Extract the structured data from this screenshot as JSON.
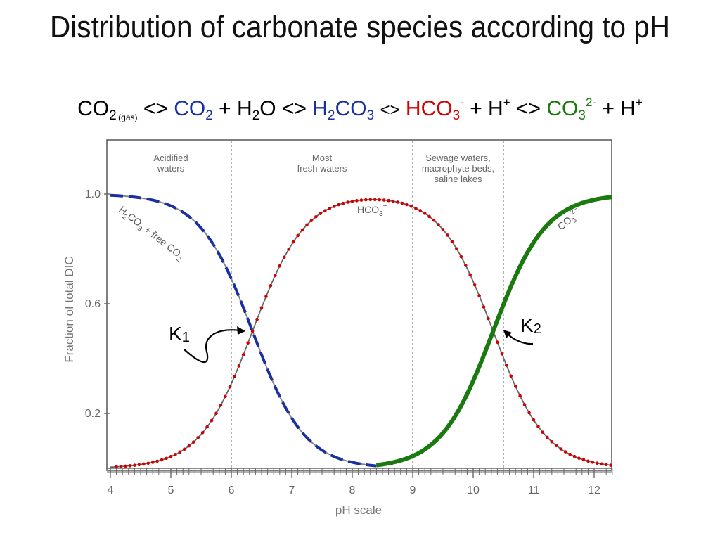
{
  "slide": {
    "title": "Distribution of carbonate species according to pH"
  },
  "equation": {
    "co2_gas": "CO",
    "co2_gas_sub": "2",
    "gas_label": "(gas)",
    "arrow1": "<>",
    "co2_aq": "CO",
    "co2_aq_sub": "2",
    "plus1": "+",
    "h2o_h": "H",
    "h2o_sub": "2",
    "h2o_o": "O",
    "arrow2": "<>",
    "h2co3_h": "H",
    "h2co3_sub1": "2",
    "h2co3_co": "CO",
    "h2co3_sub2": "3",
    "arrow3": "<>",
    "hco3": "HCO",
    "hco3_sub": "3",
    "hco3_sup": "-",
    "plus2": "+ H",
    "hplus_sup1": "+",
    "arrow4": "<>",
    "co3": "CO",
    "co3_sub": "3",
    "co3_sup": "2-",
    "plus3": "+ H",
    "hplus_sup2": "+"
  },
  "colors": {
    "h2co3_curve": "#1a2fa0",
    "hco3_curve": "#d40000",
    "co3_curve": "#1a7a10",
    "axis_grey": "#777777"
  },
  "chart_data": {
    "type": "line",
    "xlabel": "pH scale",
    "ylabel": "Fraction of total DIC",
    "xlim": [
      4,
      12.3
    ],
    "ylim": [
      0,
      1.2
    ],
    "x_ticks": [
      4,
      5,
      6,
      7,
      8,
      9,
      10,
      11,
      12
    ],
    "y_ticks": [
      0.2,
      0.6,
      1.0
    ],
    "y_tick_labels": [
      "0.2",
      "0.6",
      "1.0"
    ],
    "pK1": 6.35,
    "pK2": 10.33,
    "zones": [
      {
        "x_start": 4,
        "x_end": 6,
        "label_lines": [
          "Acidified",
          "waters"
        ]
      },
      {
        "x_start": 6,
        "x_end": 9,
        "label_lines": [
          "Most",
          "fresh waters"
        ]
      },
      {
        "x_start": 9,
        "x_end": 10.5,
        "label_lines": [
          "Sewage waters,",
          "macrophyte beds,",
          "saline lakes"
        ]
      }
    ],
    "zone_boundaries": [
      6,
      9,
      10.5
    ],
    "series": [
      {
        "name": "H2CO3 + free CO2",
        "style": "dashed-blue",
        "x": [
          4,
          5,
          6,
          6.35,
          7,
          8,
          8.4
        ],
        "values": [
          1.0,
          0.96,
          0.69,
          0.5,
          0.18,
          0.02,
          0.01
        ]
      },
      {
        "name": "HCO3−",
        "style": "dotted-red",
        "x": [
          4,
          5,
          6,
          6.35,
          7,
          8,
          8.4,
          9,
          10,
          10.33,
          11,
          12,
          12.3
        ],
        "values": [
          0.0,
          0.04,
          0.31,
          0.5,
          0.82,
          0.98,
          0.99,
          0.96,
          0.68,
          0.5,
          0.18,
          0.02,
          0.01
        ]
      },
      {
        "name": "CO3 2−",
        "style": "solid-green",
        "x": [
          8.4,
          9,
          10,
          10.33,
          11,
          12,
          12.3
        ],
        "values": [
          0.01,
          0.04,
          0.32,
          0.5,
          0.82,
          0.98,
          0.99
        ]
      }
    ],
    "curve_labels": {
      "h2co3_main": "H",
      "h2co3_s1": "2",
      "h2co3_mid": "CO",
      "h2co3_s2": "3",
      "h2co3_rest": " + free CO",
      "h2co3_s3": "2",
      "hco3_main": "HCO",
      "hco3_sub": "3",
      "hco3_sup": "−",
      "co3_main": "CO",
      "co3_sub": "3",
      "co3_sup": "2−"
    },
    "annotations": [
      {
        "text": "K",
        "sub": "1"
      },
      {
        "text": "K",
        "sub": "2"
      }
    ]
  }
}
